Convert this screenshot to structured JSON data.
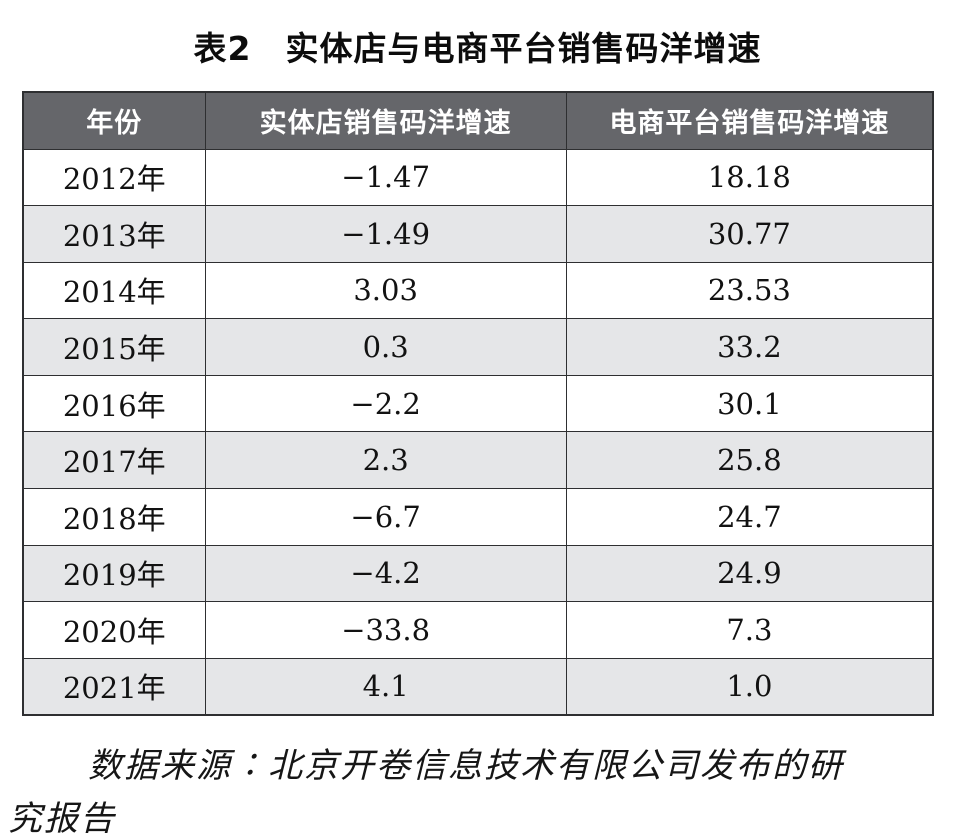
{
  "title": "表2　实体店与电商平台销售码洋增速",
  "table": {
    "columns": [
      "年份",
      "实体店销售码洋增速",
      "电商平台销售码洋增速"
    ],
    "rows": [
      {
        "year": "2012年",
        "offline": "−1.47",
        "online": "18.18"
      },
      {
        "year": "2013年",
        "offline": "−1.49",
        "online": "30.77"
      },
      {
        "year": "2014年",
        "offline": "3.03",
        "online": "23.53"
      },
      {
        "year": "2015年",
        "offline": "0.3",
        "online": "33.2"
      },
      {
        "year": "2016年",
        "offline": "−2.2",
        "online": "30.1"
      },
      {
        "year": "2017年",
        "offline": "2.3",
        "online": "25.8"
      },
      {
        "year": "2018年",
        "offline": "−6.7",
        "online": "24.7"
      },
      {
        "year": "2019年",
        "offline": "−4.2",
        "online": "24.9"
      },
      {
        "year": "2020年",
        "offline": "−33.8",
        "online": "7.3"
      },
      {
        "year": "2021年",
        "offline": "4.1",
        "online": "1.0"
      }
    ]
  },
  "source": {
    "lines": [
      "数据来源∶北京开卷信息技术有限公司发布的研",
      "究报告"
    ],
    "full_text": "数据来源∶北京开卷信息技术有限公司发布的研究报告"
  },
  "colors": {
    "header_bg": "#65666a",
    "header_text": "#ffffff",
    "row_alt_bg": "#e5e6e8",
    "border": "#2e2f31",
    "text": "#121212",
    "page_bg": "#ffffff"
  }
}
